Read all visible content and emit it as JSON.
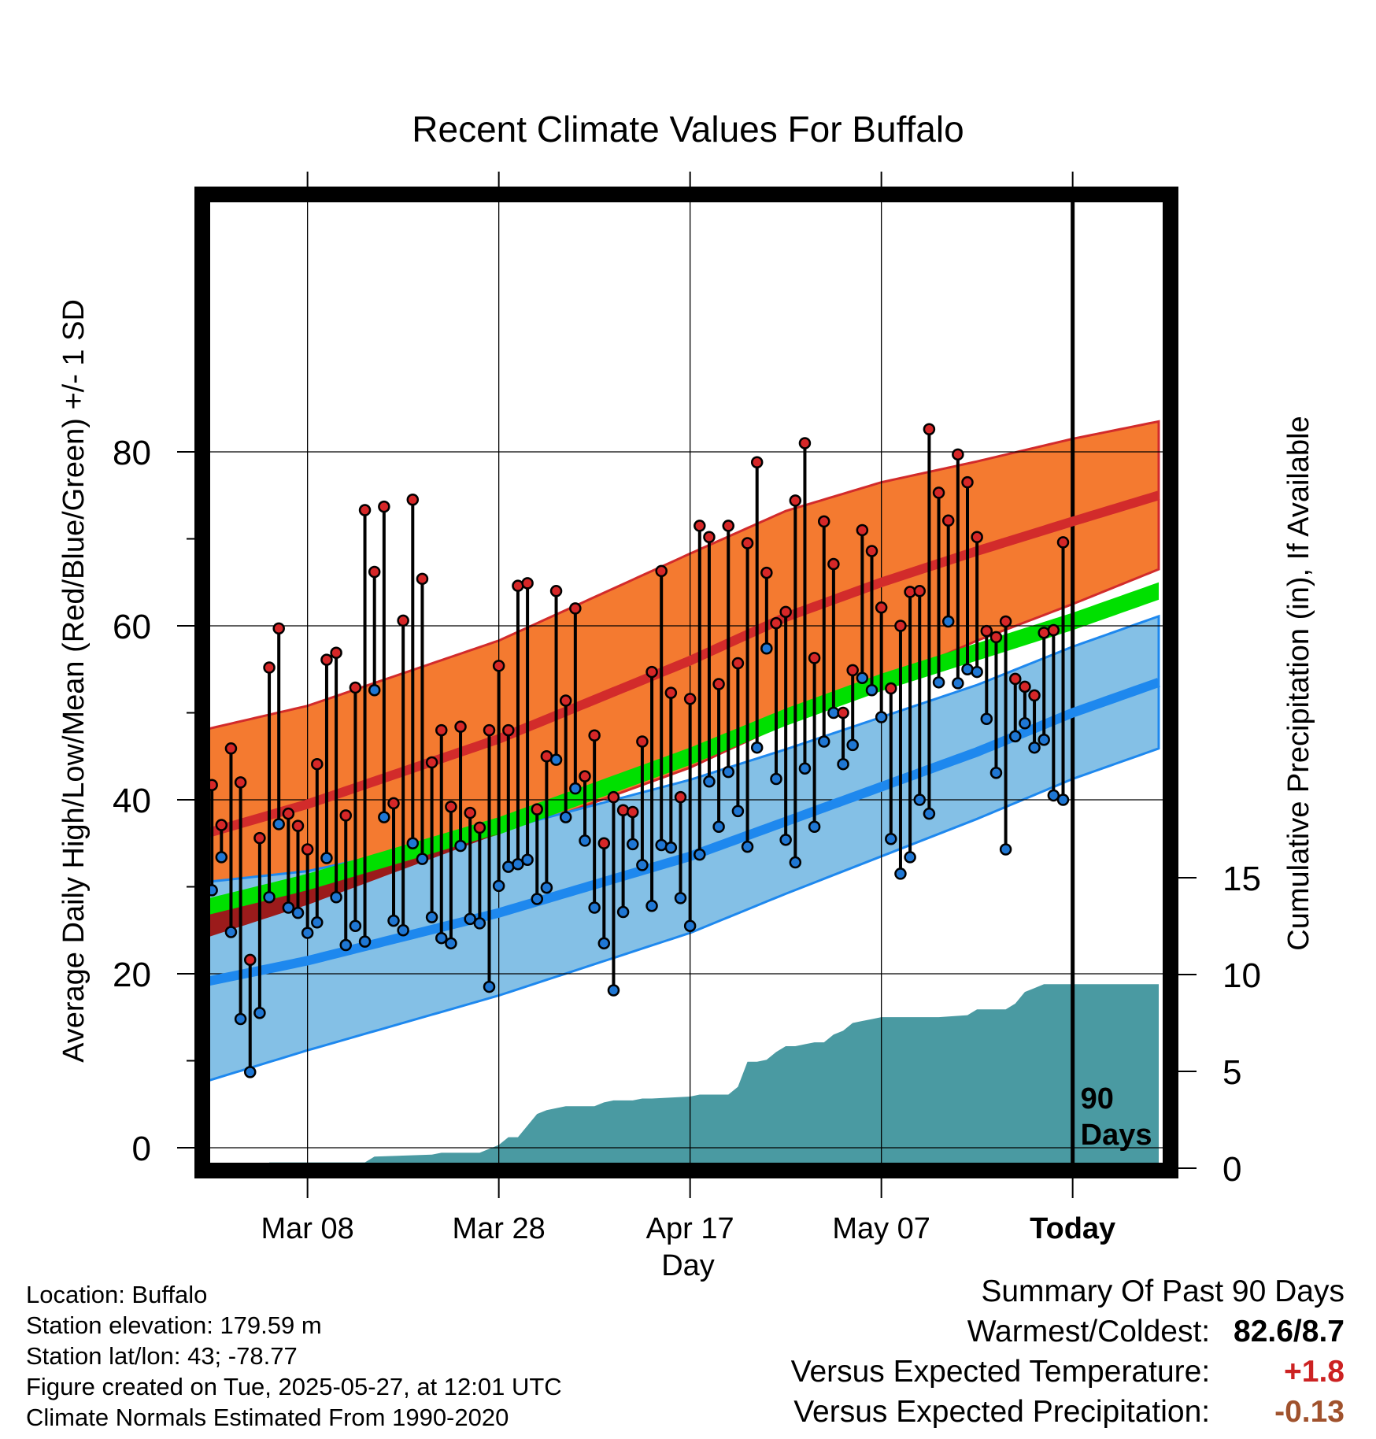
{
  "chart_data": {
    "type": "line",
    "title": "Recent Climate Values For Buffalo",
    "xlabel": "Day",
    "ylabel_left": "Average Daily High/Low/Mean (Red/Blue/Green) +/- 1 SD",
    "ylabel_right": "Cumulative Precipitation (in), If Available",
    "x_tick_labels": [
      "Mar 08",
      "Mar 28",
      "Apr 17",
      "May 07",
      "Today"
    ],
    "x_tick_days": [
      10,
      30,
      50,
      70,
      90
    ],
    "xlim": [
      -1,
      99
    ],
    "y_left_ticks": [
      "0",
      "20",
      "40",
      "60",
      "80"
    ],
    "y_right_ticks": [
      "0",
      "5",
      "10",
      "15"
    ],
    "ylim_left": [
      -2,
      88
    ],
    "precip_axis_max_in": 15,
    "today_marker_label": "90 Days",
    "grid": true,
    "normals": {
      "x": [
        -1,
        10,
        30,
        50,
        60,
        70,
        80,
        90,
        99
      ],
      "high_mean": [
        36,
        39.5,
        47,
        56,
        61,
        65,
        68.6,
        72,
        75
      ],
      "high_sd": [
        12,
        11.3,
        11.3,
        12.3,
        12.2,
        11.5,
        10.3,
        9.5,
        8.5
      ],
      "low_mean": [
        19,
        21.5,
        27,
        33.5,
        37.5,
        41.5,
        45.5,
        50,
        53.5
      ],
      "low_sd": [
        11.5,
        10.3,
        9.5,
        8.8,
        8.3,
        8,
        7.7,
        7.6,
        7.6
      ],
      "mean_mean": [
        27.5,
        30.5,
        37,
        45,
        49.5,
        53.5,
        57,
        60.5,
        64
      ],
      "mean_sd": [
        1,
        1,
        1,
        1,
        1,
        1,
        1,
        1,
        1
      ]
    },
    "series": [
      {
        "name": "High",
        "color": "#d62728",
        "values": [
          41.7,
          37.1,
          45.9,
          42,
          21.6,
          35.6,
          55.2,
          59.7,
          38.4,
          37,
          34.3,
          44.1,
          56.1,
          56.9,
          38.2,
          52.9,
          73.3,
          66.2,
          73.7,
          39.6,
          60.6,
          74.5,
          65.4,
          44.3,
          48,
          39.2,
          48.4,
          38.5,
          36.8,
          48,
          55.4,
          48,
          64.6,
          64.9,
          38.9,
          45,
          64,
          51.4,
          62,
          42.7,
          47.4,
          35,
          40.3,
          38.8,
          38.6,
          46.7,
          54.7,
          66.3,
          52.3,
          40.3,
          51.6,
          71.5,
          70.2,
          53.3,
          71.5,
          55.7,
          69.5,
          78.8,
          66.1,
          60.3,
          61.6,
          74.4,
          81,
          56.3,
          72,
          67.1,
          50,
          54.9,
          71,
          68.6,
          62.1,
          52.8,
          60,
          63.9,
          64,
          82.6,
          75.3,
          72.1,
          79.7,
          76.5,
          70.2,
          59.4,
          58.7,
          60.5,
          53.9,
          53,
          52,
          59.2,
          59.5,
          69.6
        ]
      },
      {
        "name": "Low",
        "color": "#1f77d4",
        "values": [
          29.6,
          33.4,
          24.8,
          14.8,
          8.7,
          15.5,
          28.8,
          37.2,
          27.6,
          27,
          24.7,
          25.9,
          33.3,
          28.8,
          23.3,
          25.5,
          23.7,
          52.6,
          38,
          26.1,
          25,
          35,
          33.2,
          26.5,
          24.1,
          23.5,
          34.7,
          26.3,
          25.8,
          18.5,
          30.1,
          32.3,
          32.6,
          33.1,
          28.6,
          29.9,
          44.6,
          38,
          41.3,
          35.3,
          27.6,
          23.5,
          18.1,
          27.1,
          34.9,
          32.5,
          27.8,
          34.8,
          34.5,
          28.7,
          25.5,
          33.7,
          42.1,
          36.9,
          43.2,
          38.7,
          34.6,
          46,
          57.4,
          42.4,
          35.4,
          32.8,
          43.6,
          36.9,
          46.7,
          50,
          44.1,
          46.3,
          54,
          52.6,
          49.5,
          35.5,
          31.5,
          33.4,
          40,
          38.4,
          53.5,
          60.5,
          53.4,
          55,
          54.7,
          49.3,
          43.1,
          34.3,
          47.3,
          48.8,
          46,
          46.9,
          40.5,
          40
        ]
      },
      {
        "name": "Cumulative Precipitation",
        "color": "#4a9aa2",
        "x": [
          -1,
          5.9,
          6,
          16,
          17,
          23,
          24,
          28,
          29,
          30,
          31,
          32,
          34,
          35,
          36,
          37,
          40,
          41,
          42,
          43,
          44,
          45,
          46,
          50,
          51,
          52,
          54,
          55,
          56,
          57,
          58,
          59,
          60,
          61,
          62,
          63,
          64,
          65,
          66,
          67,
          68,
          69,
          70,
          75,
          76,
          79,
          80,
          83,
          84,
          85,
          86,
          87,
          99
        ],
        "values": [
          0,
          0,
          0.3,
          0.3,
          0.6,
          0.7,
          0.8,
          0.8,
          1,
          1.2,
          1.6,
          1.6,
          2.8,
          3,
          3.1,
          3.2,
          3.2,
          3.4,
          3.5,
          3.5,
          3.5,
          3.6,
          3.6,
          3.7,
          3.8,
          3.8,
          3.8,
          4.2,
          5.5,
          5.5,
          5.6,
          6,
          6.3,
          6.3,
          6.4,
          6.5,
          6.5,
          6.9,
          7.1,
          7.5,
          7.6,
          7.7,
          7.8,
          7.8,
          7.8,
          7.9,
          8.2,
          8.2,
          8.5,
          9.1,
          9.3,
          9.5,
          9.5
        ]
      }
    ]
  },
  "location_info": [
    "Location: Buffalo",
    "Station elevation: 179.59 m",
    "Station lat/lon: 43; -78.77",
    "Figure created on Tue, 2025-05-27, at 12:01 UTC",
    "Climate Normals Estimated From 1990-2020"
  ],
  "summary": {
    "heading": "Summary Of Past 90 Days",
    "rows": [
      {
        "label": "Warmest/Coldest:",
        "value": "82.6/8.7",
        "color": "#000000"
      },
      {
        "label": "Versus Expected Temperature:",
        "value": "+1.8",
        "color": "#cc2222"
      },
      {
        "label": "Versus Expected Precipitation:",
        "value": "-0.13",
        "color": "#a0522d"
      }
    ]
  },
  "colors": {
    "high_band": "#f47a30",
    "high_mean": "#d22b2b",
    "low_band": "#84c0e6",
    "low_mean": "#1e88ee",
    "mean_band": "#00e000",
    "mean_band_overlap": "#9b1b1b",
    "precip": "#4a9aa2",
    "frame": "#000000"
  }
}
